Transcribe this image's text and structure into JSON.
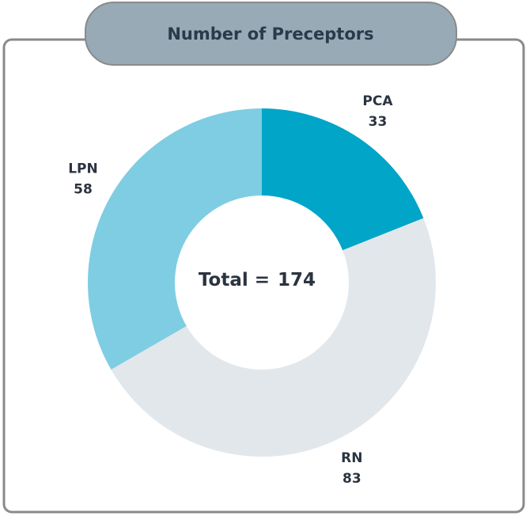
{
  "chart_data": {
    "type": "donut",
    "title": "Number of Preceptors",
    "categories": [
      "PCA",
      "RN",
      "LPN"
    ],
    "values": [
      33,
      83,
      58
    ],
    "colors": [
      "#00a5c8",
      "#e2e7eb",
      "#7fcde2"
    ],
    "center_label": "Total =",
    "total": 174
  }
}
